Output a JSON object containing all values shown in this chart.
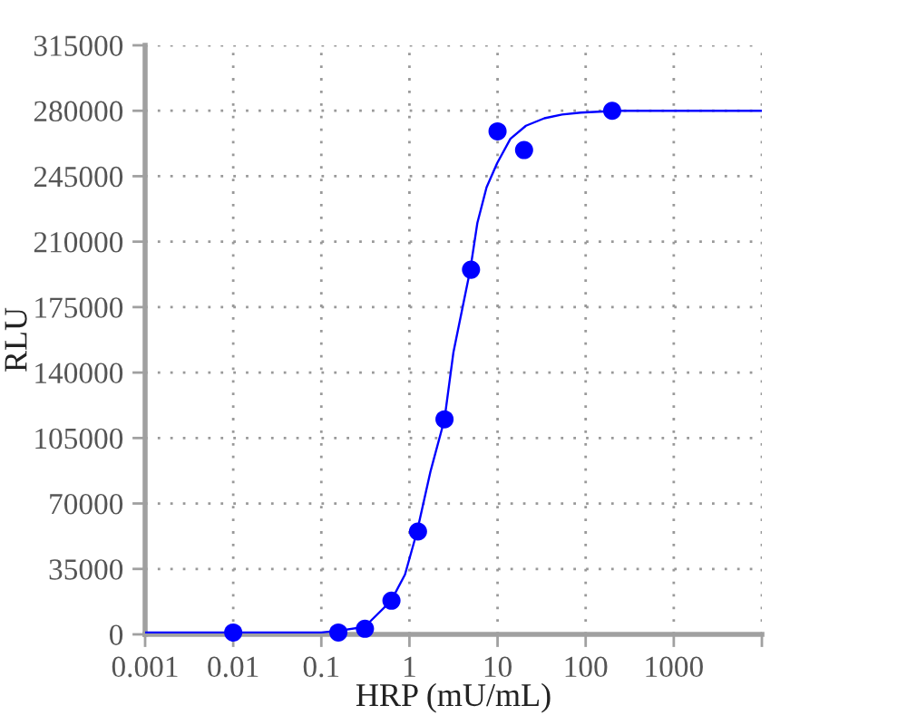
{
  "chart_data": {
    "type": "scatter",
    "xlabel": "HRP (mU/mL)",
    "ylabel": "RLU",
    "log": "x",
    "xlim": [
      0.001,
      10000
    ],
    "xticks": [
      0.001,
      0.01,
      0.1,
      1,
      10,
      100,
      1000,
      {
        "value": 10000,
        "label": null
      }
    ],
    "ylim": [
      0,
      315000
    ],
    "yticks": [
      0,
      35000,
      70000,
      105000,
      140000,
      175000,
      210000,
      245000,
      280000,
      315000
    ],
    "grid": true,
    "series": [
      {
        "type": "line",
        "color": "#0000ff",
        "line_style": "solid",
        "marker": "none",
        "x": [
          0.001,
          0.01,
          0.1,
          0.16,
          0.31,
          0.62,
          0.89,
          1.22,
          1.73,
          2.5,
          3.16,
          4.9,
          5.9,
          7.5,
          9.9,
          14,
          21,
          34,
          54,
          88,
          225,
          10000
        ],
        "values": [
          1000,
          1000,
          1000,
          2000,
          4000,
          18000,
          32000,
          55000,
          87000,
          115000,
          151000,
          195000,
          220000,
          239000,
          252000,
          265000,
          272000,
          276000,
          278000,
          279000,
          280000,
          280000
        ]
      },
      {
        "color": "#0000ff",
        "marker": "circle",
        "x": [
          0.01,
          0.156,
          0.3125,
          0.625,
          1.25,
          2.5,
          5,
          10,
          20,
          200
        ],
        "values": [
          1000,
          1000,
          3000,
          18000,
          55000,
          115000,
          195000,
          269000,
          259000,
          280000
        ]
      }
    ]
  }
}
